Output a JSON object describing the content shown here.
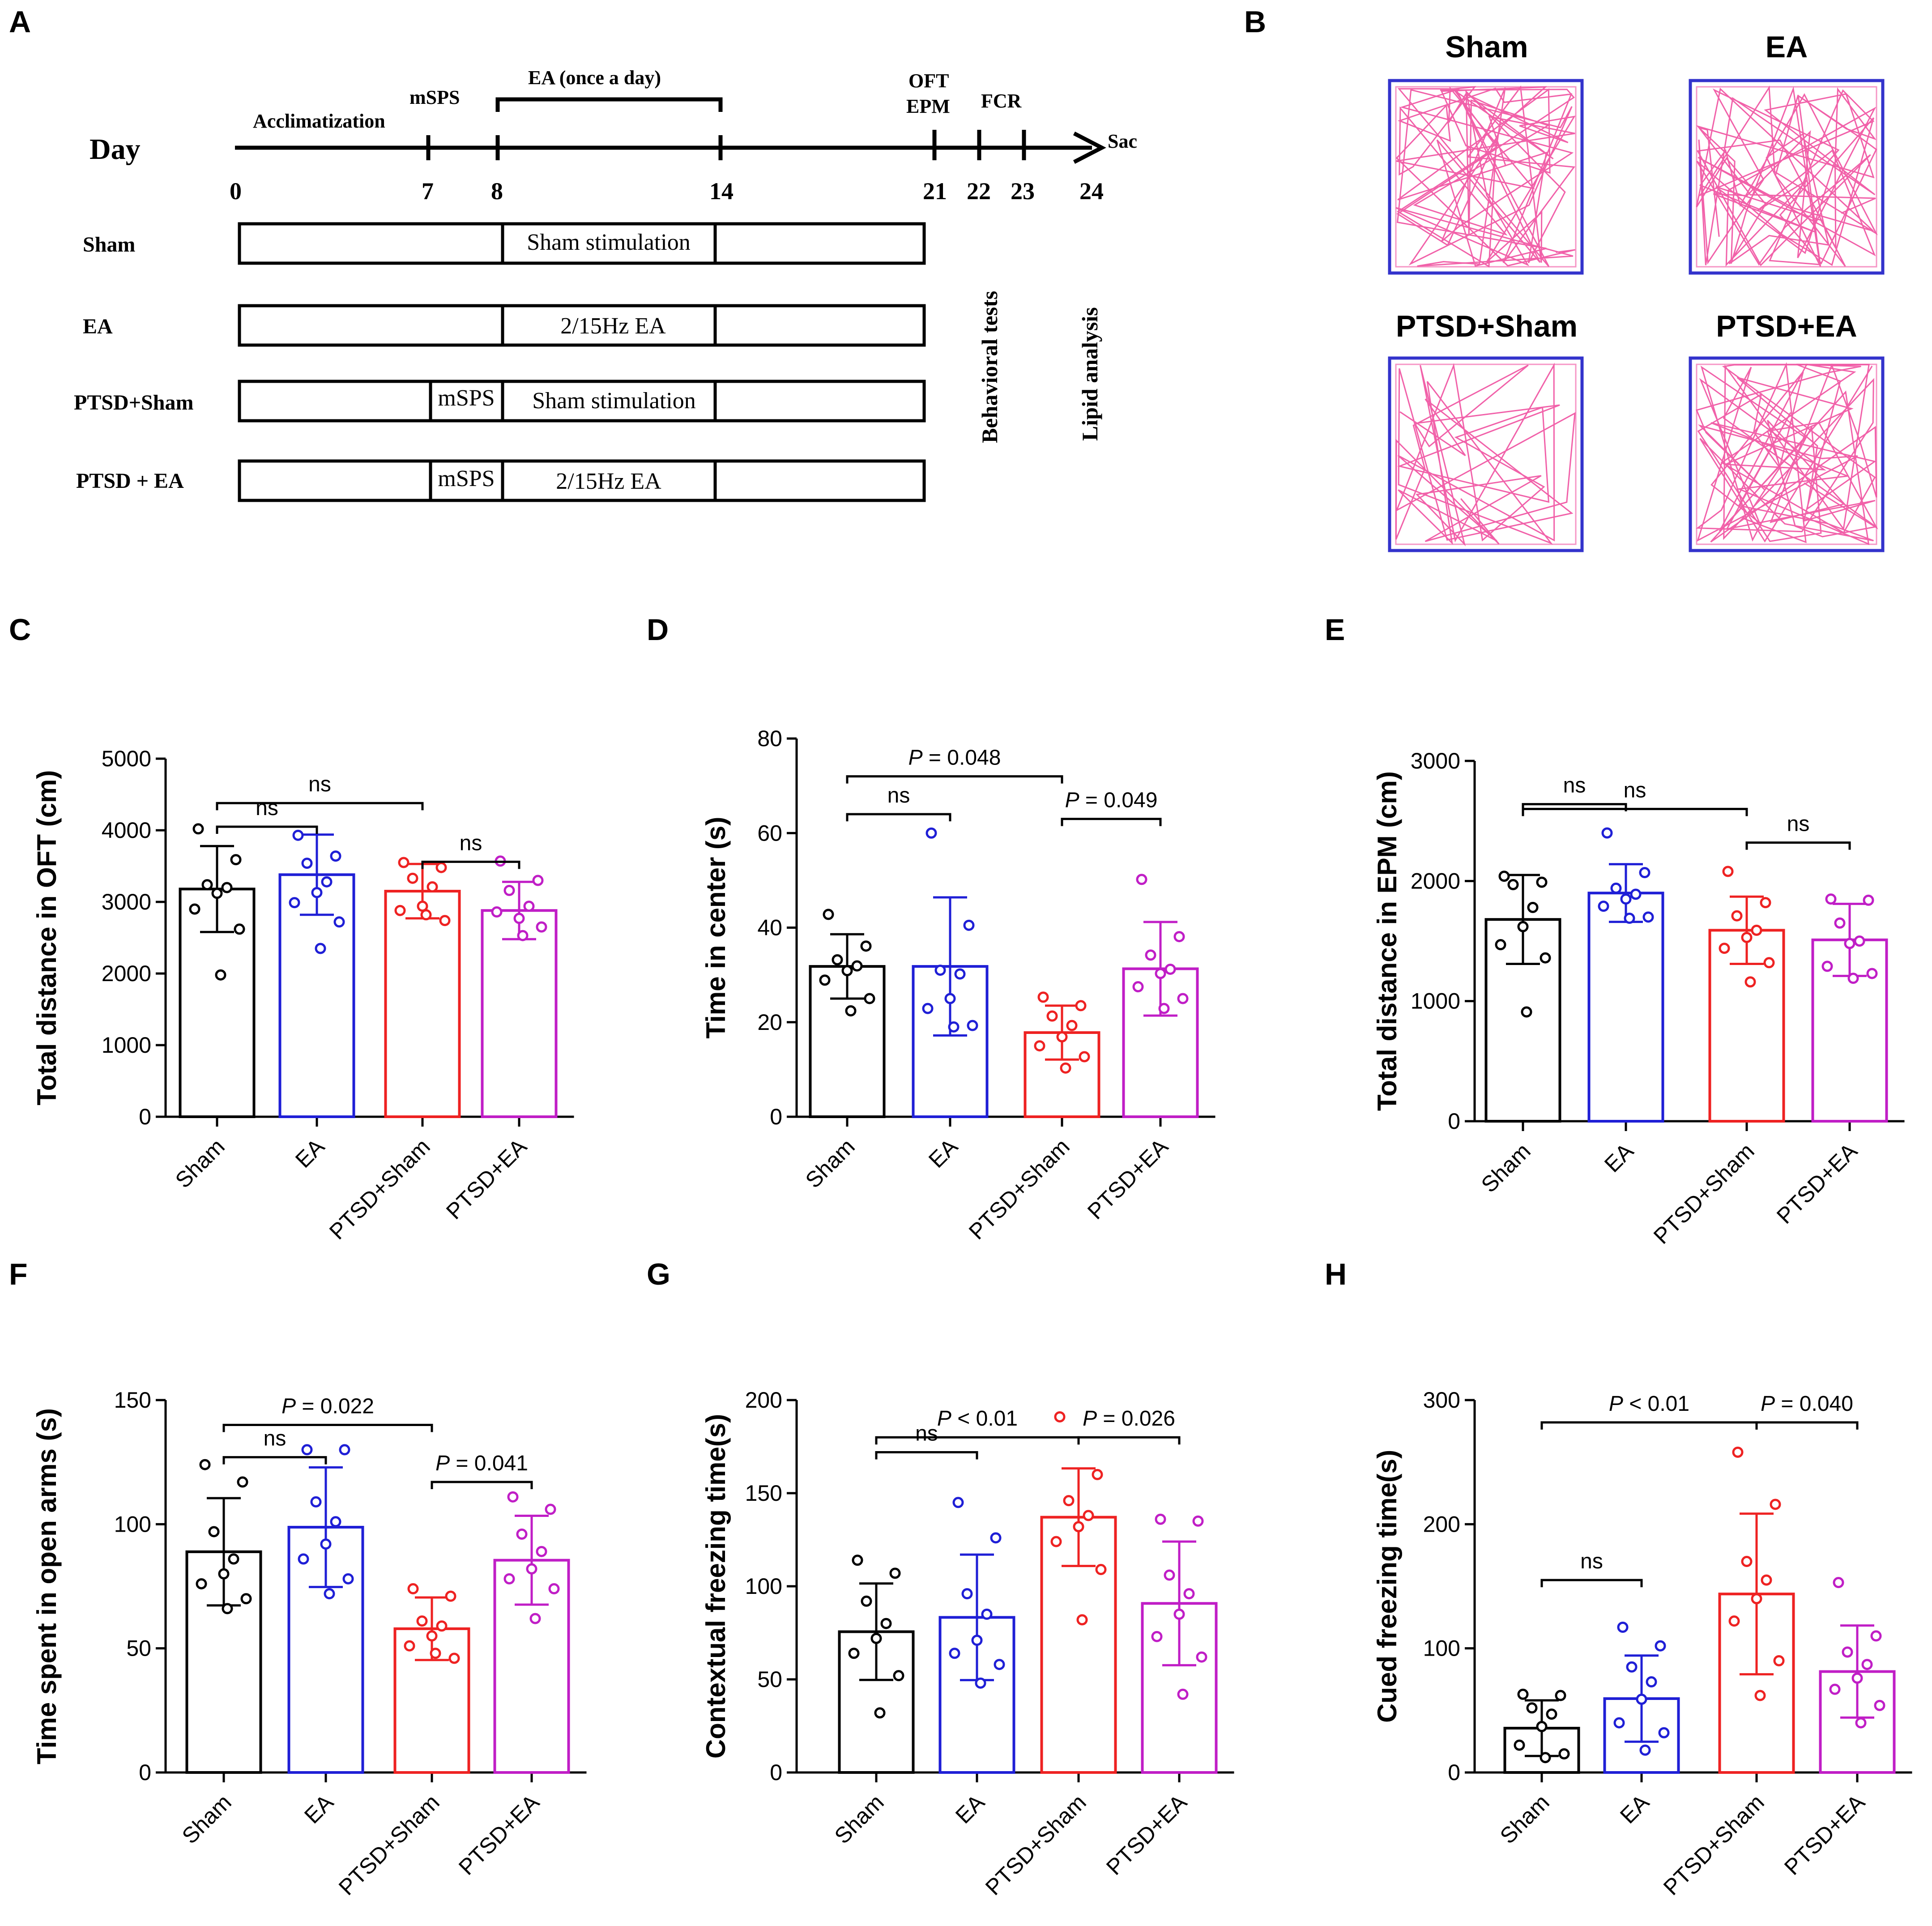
{
  "figure": {
    "panel_letters": [
      "A",
      "B",
      "C",
      "D",
      "E",
      "F",
      "G",
      "H"
    ],
    "colors": {
      "Sham": "#000000",
      "EA": "#1f1fd6",
      "PTSD+Sham": "#ee2222",
      "PTSD+EA": "#c01ec6",
      "track": "#f050a0",
      "arena_border": "#3333cc"
    }
  },
  "timeline": {
    "day_label": "Day",
    "phases": {
      "acclimatization": "Acclimatization",
      "mSPS": "mSPS",
      "EA": "EA (once a day)",
      "OFT": "OFT",
      "EPM": "EPM",
      "FCR": "FCR",
      "Sac": "Sac"
    },
    "ticks": [
      "0",
      "7",
      "8",
      "14",
      "21",
      "22",
      "23",
      "24"
    ],
    "groups": [
      {
        "label": "Sham",
        "mSPS": "",
        "treatment": "Sham stimulation"
      },
      {
        "label": "EA",
        "mSPS": "",
        "treatment": "2/15Hz EA"
      },
      {
        "label": "PTSD+Sham",
        "mSPS": "mSPS",
        "treatment": "Sham stimulation"
      },
      {
        "label": "PTSD + EA",
        "mSPS": "mSPS",
        "treatment": "2/15Hz EA"
      }
    ],
    "vertical_labels": {
      "behavioral": "Behavioral tests",
      "lipid": "Lipid analysis"
    }
  },
  "oft_tracks": {
    "titles": [
      "Sham",
      "EA",
      "PTSD+Sham",
      "PTSD+EA"
    ]
  },
  "chart_data": [
    {
      "id": "C",
      "type": "bar",
      "ylabel": "Total distance in OFT (cm)",
      "categories": [
        "Sham",
        "EA",
        "PTSD+Sham",
        "PTSD+EA"
      ],
      "values": [
        3180,
        3380,
        3150,
        2880
      ],
      "sd": [
        600,
        560,
        380,
        400
      ],
      "ylim": [
        0,
        5000
      ],
      "yticks": [
        0,
        1000,
        2000,
        3000,
        4000,
        5000
      ],
      "points": [
        [
          4020,
          3590,
          3240,
          3200,
          3120,
          2900,
          2620,
          1980
        ],
        [
          3930,
          3640,
          3540,
          3280,
          3130,
          2990,
          2720,
          2350
        ],
        [
          3550,
          3480,
          3330,
          3210,
          2940,
          2880,
          2740,
          2820
        ],
        [
          3570,
          3300,
          3160,
          2940,
          2770,
          2860,
          2650,
          2530
        ]
      ],
      "comparisons": [
        {
          "g1": 0,
          "g2": 2,
          "label": "ns",
          "level": 4380
        },
        {
          "g1": 0,
          "g2": 1,
          "label": "ns",
          "level": 4050
        },
        {
          "g1": 2,
          "g2": 3,
          "label": "ns",
          "level": 3560
        }
      ]
    },
    {
      "id": "D",
      "type": "bar",
      "ylabel": "Time in center (s)",
      "categories": [
        "Sham",
        "EA",
        "PTSD+Sham",
        "PTSD+EA"
      ],
      "values": [
        31.8,
        31.8,
        17.8,
        31.3
      ],
      "sd": [
        6.8,
        14.6,
        5.7,
        9.9
      ],
      "ylim": [
        0,
        80
      ],
      "yticks": [
        0,
        20,
        40,
        60,
        80
      ],
      "points": [
        [
          42.8,
          36.1,
          33.2,
          31.9,
          30.9,
          28.9,
          25.0,
          22.4
        ],
        [
          60.0,
          40.5,
          31.0,
          30.2,
          25.0,
          22.9,
          19.3,
          19.0
        ],
        [
          25.3,
          23.5,
          21.3,
          19.3,
          16.9,
          15.0,
          12.7,
          10.3
        ],
        [
          50.2,
          38.1,
          34.2,
          31.2,
          30.3,
          27.5,
          25.0,
          22.9
        ]
      ],
      "comparisons": [
        {
          "g1": 0,
          "g2": 2,
          "label": "P = 0.048",
          "level": 72
        },
        {
          "g1": 0,
          "g2": 1,
          "label": "ns",
          "level": 64
        },
        {
          "g1": 2,
          "g2": 3,
          "label": "P = 0.049",
          "level": 63
        }
      ]
    },
    {
      "id": "E",
      "type": "bar",
      "ylabel": "Total distance in EPM (cm)",
      "categories": [
        "Sham",
        "EA",
        "PTSD+Sham",
        "PTSD+EA"
      ],
      "values": [
        1680,
        1900,
        1590,
        1510
      ],
      "sd": [
        370,
        240,
        280,
        300
      ],
      "ylim": [
        0,
        3000
      ],
      "yticks": [
        0,
        1000,
        2000,
        3000
      ],
      "points": [
        [
          2040,
          1990,
          1970,
          1780,
          1620,
          1470,
          1360,
          910
        ],
        [
          2400,
          2070,
          1940,
          1890,
          1850,
          1790,
          1700,
          1690
        ],
        [
          2080,
          1820,
          1710,
          1590,
          1530,
          1440,
          1320,
          1160
        ],
        [
          1850,
          1840,
          1650,
          1500,
          1480,
          1290,
          1230,
          1190
        ]
      ],
      "comparisons": [
        {
          "g1": 0,
          "g2": 2,
          "label": "ns",
          "level": 2600
        },
        {
          "g1": 0,
          "g2": 1,
          "label": "ns",
          "level": 2640
        },
        {
          "g1": 2,
          "g2": 3,
          "label": "ns",
          "level": 2320
        }
      ]
    },
    {
      "id": "F",
      "type": "bar",
      "ylabel": "Time spent in open arms (s)",
      "categories": [
        "Sham",
        "EA",
        "PTSD+Sham",
        "PTSD+EA"
      ],
      "values": [
        88.9,
        98.8,
        57.9,
        85.5
      ],
      "sd": [
        21.6,
        24.1,
        12.6,
        17.9
      ],
      "ylim": [
        0,
        150
      ],
      "yticks": [
        0,
        50,
        100,
        150
      ],
      "points": [
        [
          124,
          117,
          97,
          86,
          80,
          76,
          70,
          66
        ],
        [
          130,
          130,
          109,
          101,
          92,
          86,
          78,
          72
        ],
        [
          74,
          71,
          61,
          59,
          55,
          51,
          46,
          48
        ],
        [
          111,
          106,
          96,
          89,
          82,
          78,
          74,
          62
        ]
      ],
      "comparisons": [
        {
          "g1": 0,
          "g2": 2,
          "label": "P = 0.022",
          "level": 140
        },
        {
          "g1": 0,
          "g2": 1,
          "label": "ns",
          "level": 127
        },
        {
          "g1": 2,
          "g2": 3,
          "label": "P = 0.041",
          "level": 117
        }
      ]
    },
    {
      "id": "G",
      "type": "bar",
      "ylabel": "Contextual freezing time(s)",
      "categories": [
        "Sham",
        "EA",
        "PTSD+Sham",
        "PTSD+EA"
      ],
      "values": [
        75.6,
        83.3,
        137.1,
        90.8
      ],
      "sd": [
        25.9,
        33.7,
        26.2,
        33.2
      ],
      "ylim": [
        0,
        200
      ],
      "yticks": [
        0,
        50,
        100,
        150,
        200
      ],
      "points": [
        [
          114,
          107,
          92,
          80,
          72,
          64,
          52,
          32
        ],
        [
          145,
          126,
          96,
          85,
          71,
          64,
          58,
          48
        ],
        [
          191,
          160,
          146,
          138,
          132,
          124,
          109,
          82
        ],
        [
          136,
          135,
          106,
          96,
          85,
          73,
          62,
          42
        ]
      ],
      "comparisons": [
        {
          "g1": 0,
          "g2": 2,
          "label": "P < 0.01",
          "level": 180
        },
        {
          "g1": 0,
          "g2": 1,
          "label": "ns",
          "level": 172
        },
        {
          "g1": 2,
          "g2": 3,
          "label": "P = 0.026",
          "level": 180
        }
      ]
    },
    {
      "id": "H",
      "type": "bar",
      "ylabel": "Cued freezing time(s)",
      "categories": [
        "Sham",
        "EA",
        "PTSD+Sham",
        "PTSD+EA"
      ],
      "values": [
        35.7,
        59.5,
        143.8,
        81.3
      ],
      "sd": [
        22.4,
        34.7,
        64.7,
        37.1
      ],
      "ylim": [
        0,
        300
      ],
      "yticks": [
        0,
        100,
        200,
        300
      ],
      "points": [
        [
          63,
          62,
          52,
          47,
          37,
          22,
          15,
          12
        ],
        [
          117,
          102,
          85,
          73,
          59,
          40,
          32,
          18
        ],
        [
          258,
          216,
          170,
          155,
          140,
          122,
          90,
          62
        ],
        [
          153,
          110,
          97,
          87,
          76,
          67,
          54,
          40
        ]
      ],
      "comparisons": [
        {
          "g1": 0,
          "g2": 2,
          "label": "P < 0.01",
          "level": 282
        },
        {
          "g1": 0,
          "g2": 1,
          "label": "ns",
          "level": 155
        },
        {
          "g1": 2,
          "g2": 3,
          "label": "P = 0.040",
          "level": 282
        }
      ]
    }
  ]
}
